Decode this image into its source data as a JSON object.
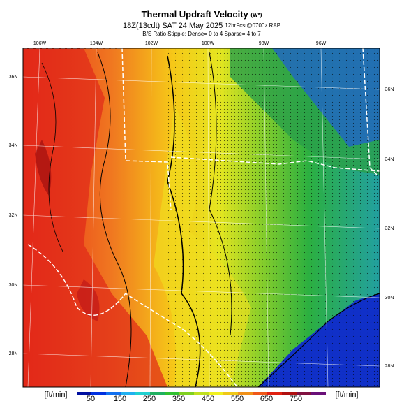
{
  "header": {
    "title": "Thermal Updraft Velocity",
    "title_suffix": "(W*)",
    "subtitle": "18Z(13cdt) SAT 24 May 2025",
    "subtitle_suffix": "12hrFcst@0700z RAP",
    "note": "B/S Ratio Stipple: Dense= 0 to 4 Sparse= 4 to 7"
  },
  "map": {
    "lon_labels": [
      "106W",
      "104W",
      "102W",
      "100W",
      "98W",
      "96W"
    ],
    "lat_labels_left": [
      "36N",
      "34N",
      "32N",
      "30N",
      "28N"
    ],
    "lat_labels_right": [
      "36N",
      "34N",
      "32N",
      "30N",
      "28N"
    ]
  },
  "colorbar": {
    "unit_left": "[ft/min]",
    "unit_right": "[ft/min]",
    "ticks": [
      50,
      150,
      250,
      350,
      450,
      550,
      650,
      750
    ]
  }
}
